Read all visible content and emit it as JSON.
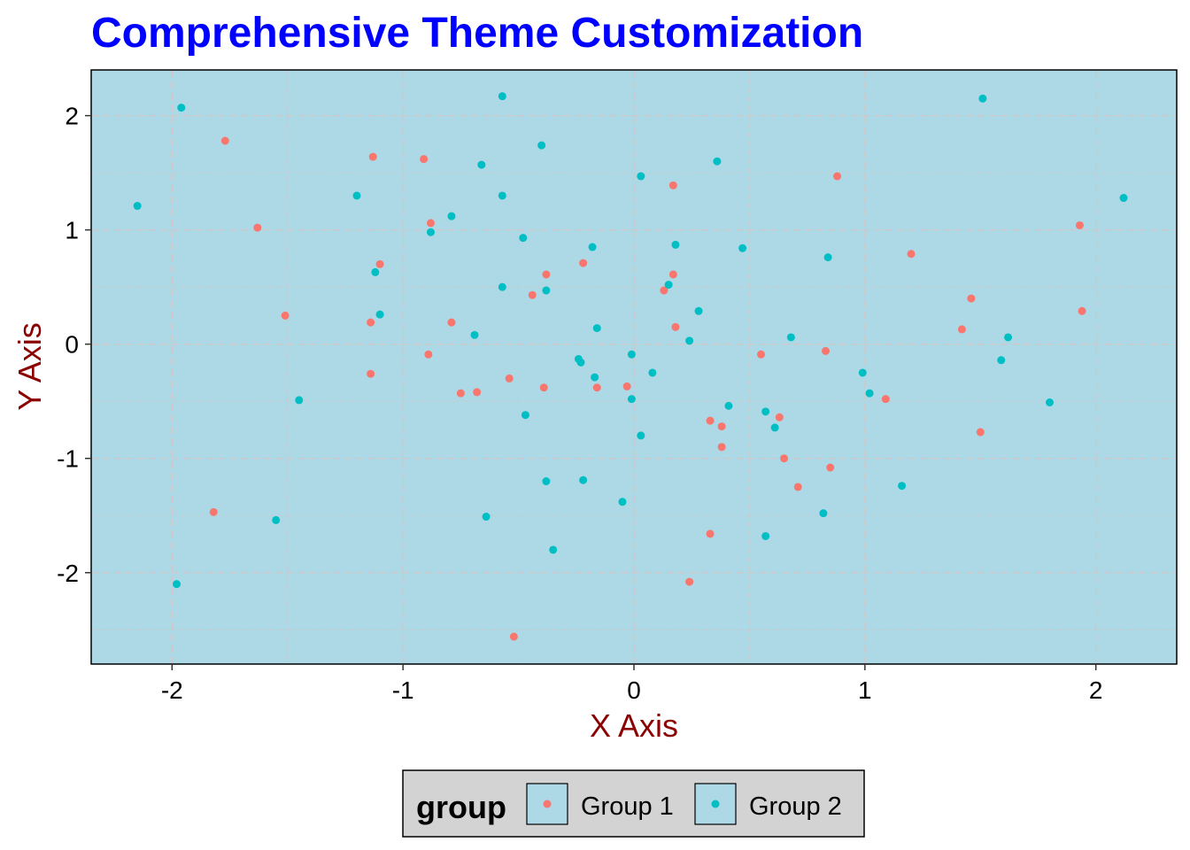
{
  "chart_data": {
    "type": "scatter",
    "title": "Comprehensive Theme Customization",
    "xlabel": "X Axis",
    "ylabel": "Y Axis",
    "xlim": [
      -2.35,
      2.35
    ],
    "ylim": [
      -2.8,
      2.4
    ],
    "x_ticks": [
      -2,
      -1,
      0,
      1,
      2
    ],
    "x_tick_labels": [
      "-2",
      "-1",
      "0",
      "1",
      "2"
    ],
    "y_ticks": [
      -2,
      -1,
      0,
      1,
      2
    ],
    "y_tick_labels": [
      "-2",
      "-1",
      "0",
      "1",
      "2"
    ],
    "grid": true,
    "legend_position": "bottom",
    "legend_title": "group",
    "colors": {
      "title": "#0000ff",
      "axis_label": "#8b0000",
      "panel_bg": "#add8e6",
      "grid": "#d3c6c6",
      "legend_bg": "#d3d3d3",
      "text": "#000000"
    },
    "series": [
      {
        "name": "Group 1",
        "color": "#f8766d",
        "points": [
          [
            -1.77,
            1.78
          ],
          [
            -1.13,
            1.64
          ],
          [
            -0.91,
            1.62
          ],
          [
            -1.63,
            1.02
          ],
          [
            -0.88,
            1.06
          ],
          [
            -1.1,
            0.7
          ],
          [
            -1.51,
            0.25
          ],
          [
            -1.14,
            0.19
          ],
          [
            -0.79,
            0.19
          ],
          [
            -0.89,
            -0.09
          ],
          [
            -1.14,
            -0.26
          ],
          [
            -0.75,
            -0.43
          ],
          [
            -0.68,
            -0.42
          ],
          [
            -0.54,
            -0.3
          ],
          [
            -0.39,
            -0.38
          ],
          [
            -0.44,
            0.43
          ],
          [
            -0.38,
            0.61
          ],
          [
            -0.22,
            0.71
          ],
          [
            -0.16,
            -0.38
          ],
          [
            -0.03,
            -0.37
          ],
          [
            0.17,
            1.39
          ],
          [
            0.17,
            0.61
          ],
          [
            0.13,
            0.47
          ],
          [
            0.18,
            0.15
          ],
          [
            0.88,
            1.47
          ],
          [
            0.55,
            -0.09
          ],
          [
            0.83,
            -0.06
          ],
          [
            0.63,
            -0.64
          ],
          [
            0.33,
            -0.67
          ],
          [
            0.38,
            -0.72
          ],
          [
            0.38,
            -0.9
          ],
          [
            0.65,
            -1.0
          ],
          [
            0.71,
            -1.25
          ],
          [
            0.85,
            -1.08
          ],
          [
            1.09,
            -0.48
          ],
          [
            1.2,
            0.79
          ],
          [
            1.46,
            0.4
          ],
          [
            1.42,
            0.13
          ],
          [
            1.5,
            -0.77
          ],
          [
            1.93,
            1.04
          ],
          [
            1.94,
            0.29
          ],
          [
            0.33,
            -1.66
          ],
          [
            0.24,
            -2.08
          ],
          [
            -0.52,
            -2.56
          ],
          [
            -1.82,
            -1.47
          ]
        ]
      },
      {
        "name": "Group 2",
        "color": "#00bfc4",
        "points": [
          [
            -2.15,
            1.21
          ],
          [
            -1.96,
            2.07
          ],
          [
            -1.2,
            1.3
          ],
          [
            -1.12,
            0.63
          ],
          [
            -1.1,
            0.26
          ],
          [
            -1.45,
            -0.49
          ],
          [
            -1.55,
            -1.54
          ],
          [
            -1.98,
            -2.1
          ],
          [
            -0.88,
            0.98
          ],
          [
            -0.79,
            1.12
          ],
          [
            -0.66,
            1.57
          ],
          [
            -0.57,
            2.17
          ],
          [
            -0.57,
            1.3
          ],
          [
            -0.4,
            1.74
          ],
          [
            -0.48,
            0.93
          ],
          [
            -0.57,
            0.5
          ],
          [
            -0.38,
            0.47
          ],
          [
            -0.69,
            0.08
          ],
          [
            -0.47,
            -0.62
          ],
          [
            -0.38,
            -1.2
          ],
          [
            -0.64,
            -1.51
          ],
          [
            -0.35,
            -1.8
          ],
          [
            -0.22,
            -1.19
          ],
          [
            -0.05,
            -1.38
          ],
          [
            -0.18,
            0.85
          ],
          [
            -0.16,
            0.14
          ],
          [
            -0.24,
            -0.13
          ],
          [
            -0.23,
            -0.16
          ],
          [
            -0.17,
            -0.29
          ],
          [
            -0.01,
            -0.09
          ],
          [
            -0.01,
            -0.48
          ],
          [
            0.03,
            -0.8
          ],
          [
            0.08,
            -0.25
          ],
          [
            0.03,
            1.47
          ],
          [
            0.36,
            1.6
          ],
          [
            0.18,
            0.87
          ],
          [
            0.15,
            0.52
          ],
          [
            0.28,
            0.29
          ],
          [
            0.24,
            0.03
          ],
          [
            0.47,
            0.84
          ],
          [
            0.41,
            -0.54
          ],
          [
            0.57,
            -0.59
          ],
          [
            0.61,
            -0.73
          ],
          [
            0.57,
            -1.68
          ],
          [
            0.68,
            0.06
          ],
          [
            0.84,
            0.76
          ],
          [
            0.82,
            -1.48
          ],
          [
            0.99,
            -0.25
          ],
          [
            1.02,
            -0.43
          ],
          [
            1.16,
            -1.24
          ],
          [
            1.51,
            2.15
          ],
          [
            1.59,
            -0.14
          ],
          [
            1.62,
            0.06
          ],
          [
            1.8,
            -0.51
          ],
          [
            2.12,
            1.28
          ]
        ]
      }
    ]
  }
}
